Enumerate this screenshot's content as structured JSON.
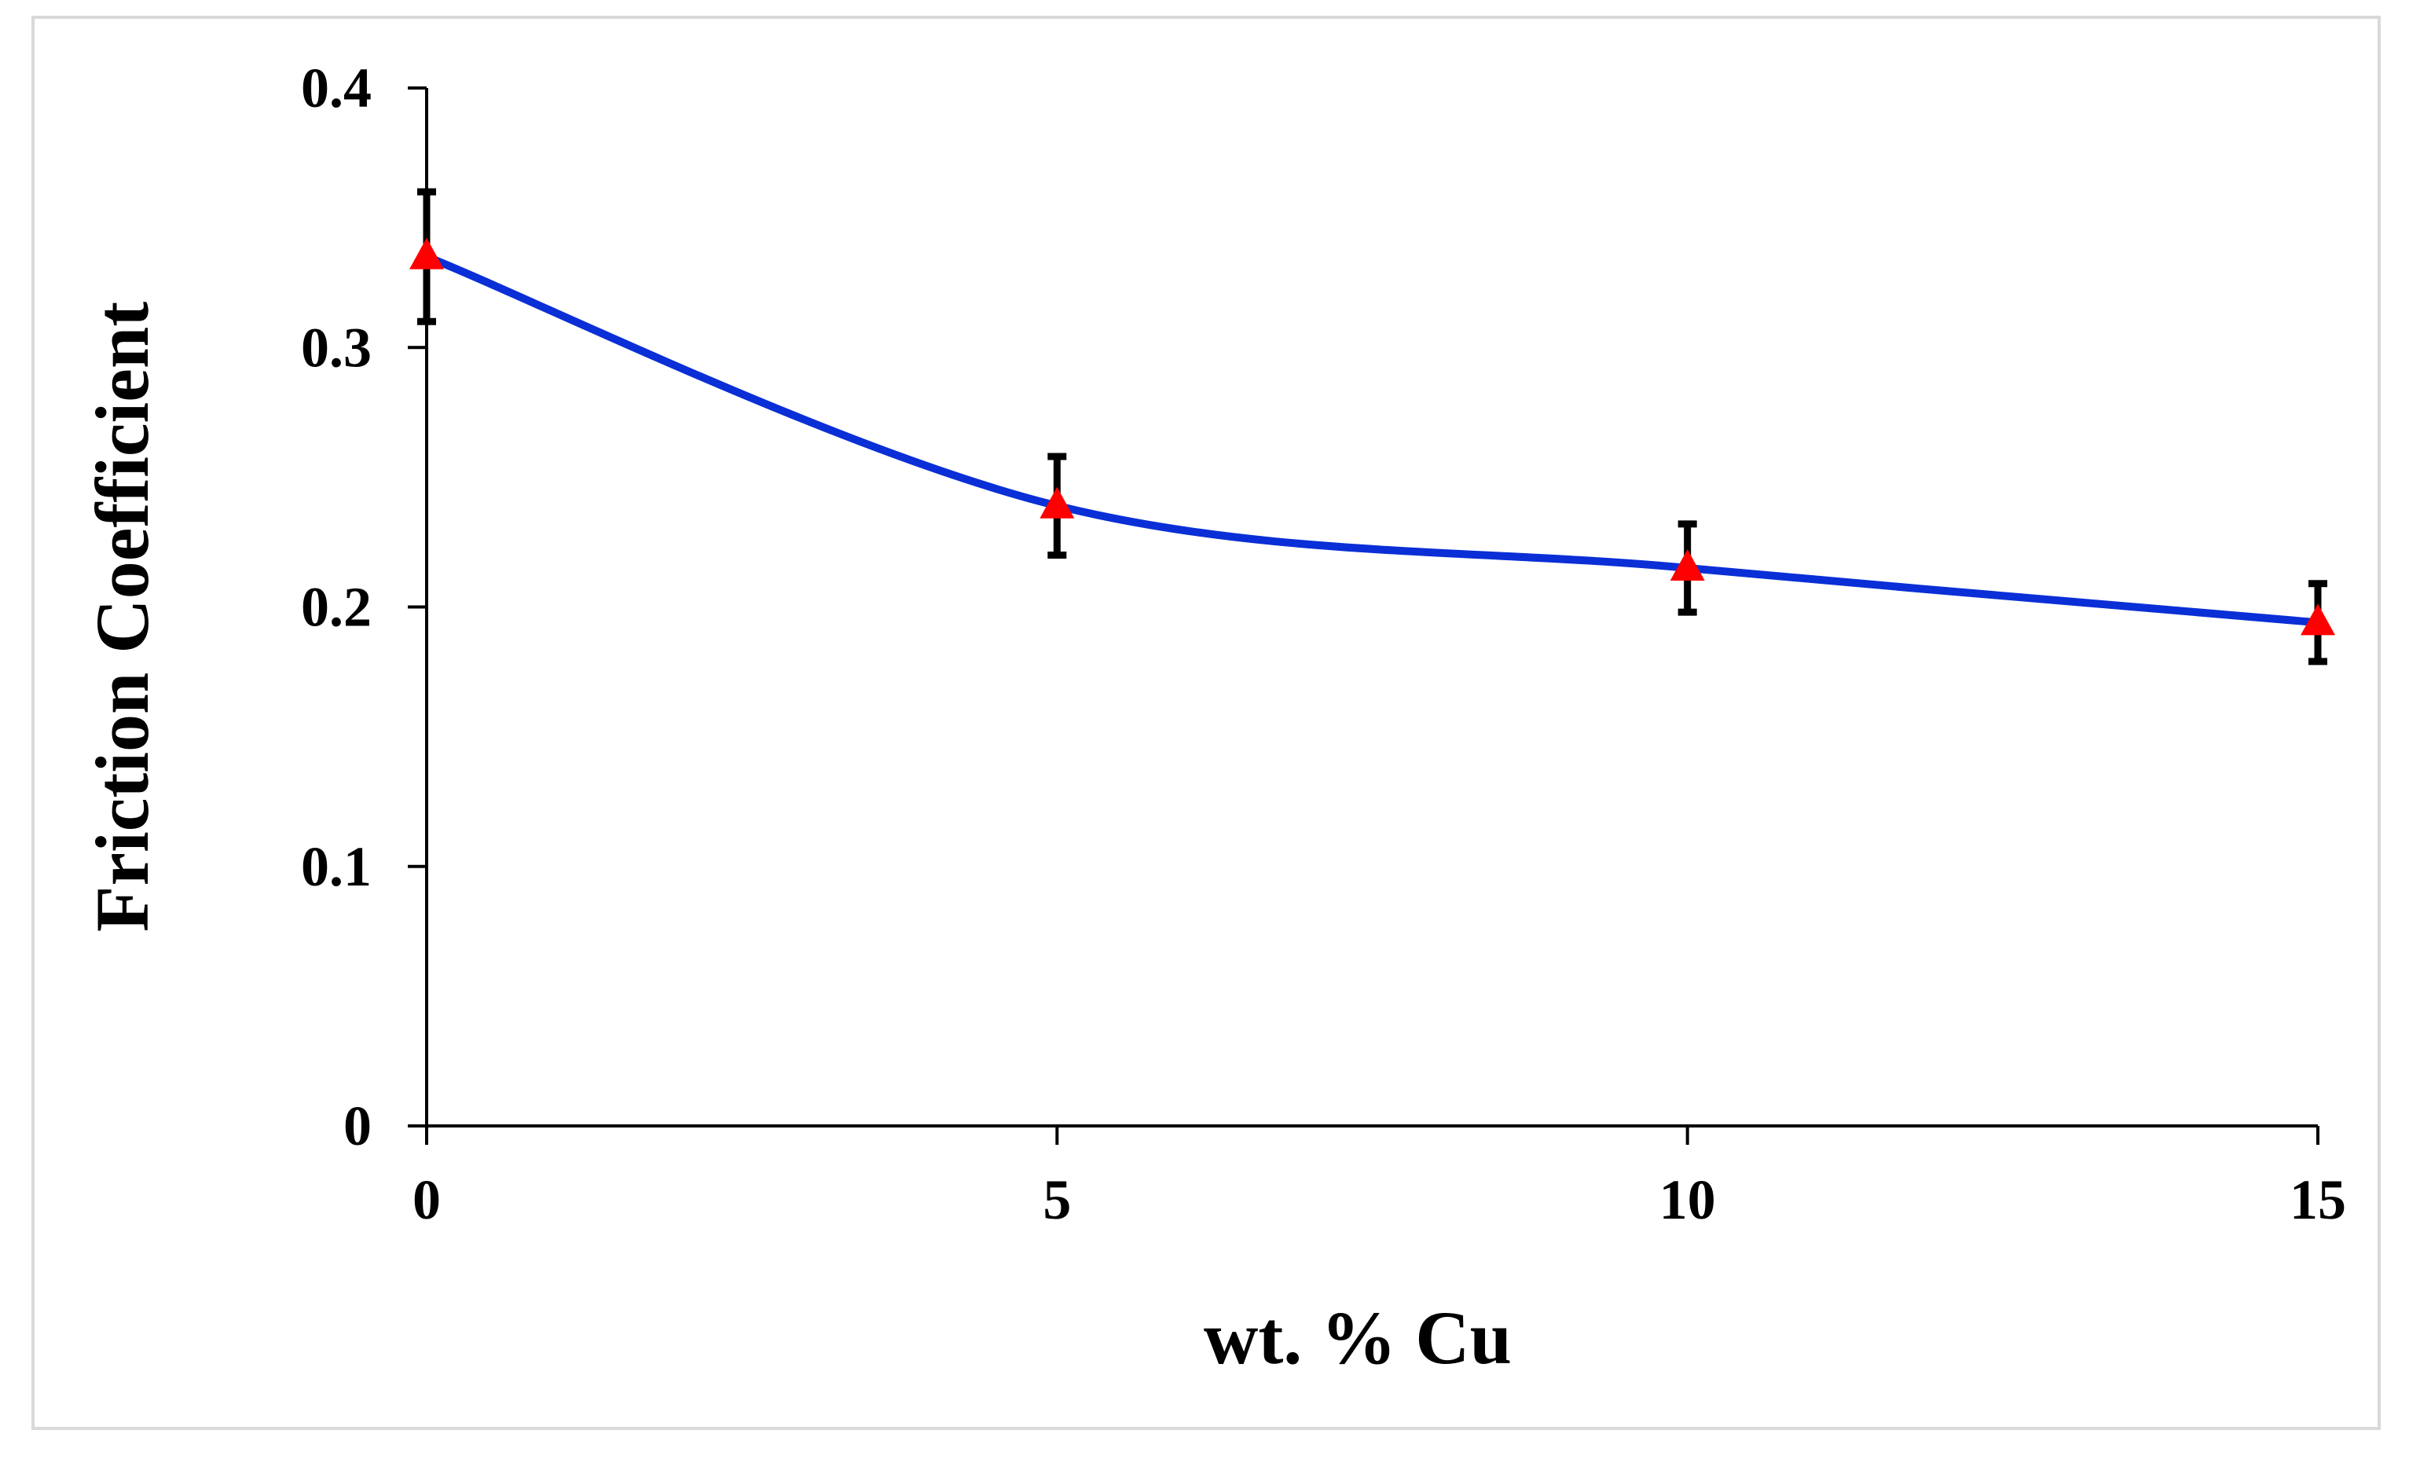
{
  "chart_data": {
    "type": "line",
    "title": "",
    "xlabel": "wt. % Cu",
    "ylabel": "Friction Coefficient",
    "xlim": [
      0,
      15
    ],
    "ylim": [
      0,
      0.4
    ],
    "x_ticks": [
      0,
      5,
      10,
      15
    ],
    "y_ticks": [
      0,
      0.1,
      0.2,
      0.3,
      0.4
    ],
    "x_tick_labels": [
      "0",
      "5",
      "10",
      "15"
    ],
    "y_tick_labels": [
      "0",
      "0.1",
      "0.2",
      "0.3",
      "0.4"
    ],
    "grid": false,
    "legend": "none",
    "series": [
      {
        "name": "Friction Coefficient",
        "x": [
          0,
          5,
          10,
          15
        ],
        "values": [
          0.335,
          0.239,
          0.215,
          0.194
        ],
        "error": [
          0.025,
          0.019,
          0.017,
          0.015
        ],
        "line_color": "#0a2fd6",
        "marker_color": "#ff0000",
        "marker": "triangle",
        "error_color": "#000000"
      }
    ]
  }
}
